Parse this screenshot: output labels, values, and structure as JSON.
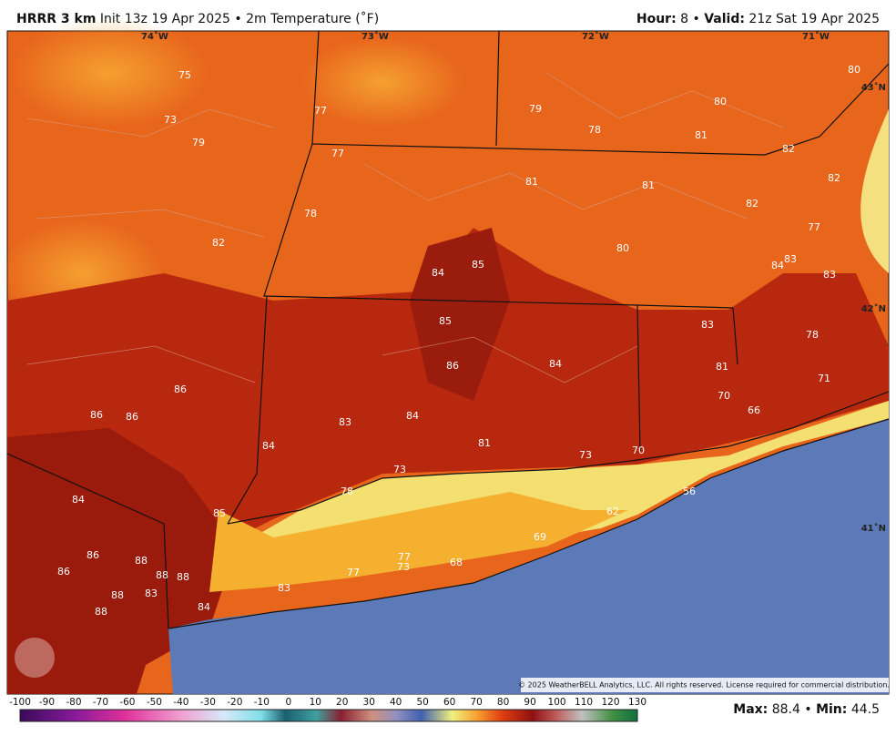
{
  "header": {
    "model": "HRRR 3 km",
    "init": "Init 13z 19 Apr 2025",
    "separator": "•",
    "field": "2m Temperature (˚F)",
    "hour_label": "Hour:",
    "hour": 8,
    "valid_label": "Valid:",
    "valid": "21z Sat 19 Apr 2025"
  },
  "map": {
    "lon_labels": [
      "74˚W",
      "73˚W",
      "72˚W",
      "71˚W"
    ],
    "lat_labels": [
      "43˚N",
      "42˚N",
      "41˚N"
    ],
    "values": [
      75,
      73,
      79,
      77,
      79,
      78,
      80,
      81,
      80,
      82,
      82,
      77,
      81,
      81,
      82,
      78,
      82,
      80,
      77,
      84,
      85,
      84,
      83,
      83,
      85,
      83,
      78,
      86,
      84,
      81,
      71,
      86,
      86,
      86,
      83,
      84,
      70,
      66,
      84,
      81,
      73,
      70,
      73,
      84,
      78,
      85,
      56,
      62,
      69,
      86,
      88,
      86,
      88,
      88,
      77,
      73,
      68,
      77,
      83,
      83,
      88,
      84,
      88
    ],
    "copyright": "© 2025 WeatherBELL Analytics, LLC. All rights reserved. License required for commercial distribution."
  },
  "colorbar": {
    "ticks": [
      -100,
      -90,
      -80,
      -70,
      -60,
      -50,
      -40,
      -30,
      -20,
      -10,
      0,
      10,
      20,
      30,
      40,
      50,
      60,
      70,
      80,
      90,
      100,
      110,
      120,
      130
    ]
  },
  "footer": {
    "max_label": "Max:",
    "max": 88.4,
    "separator": "•",
    "min_label": "Min:",
    "min": 44.5
  }
}
